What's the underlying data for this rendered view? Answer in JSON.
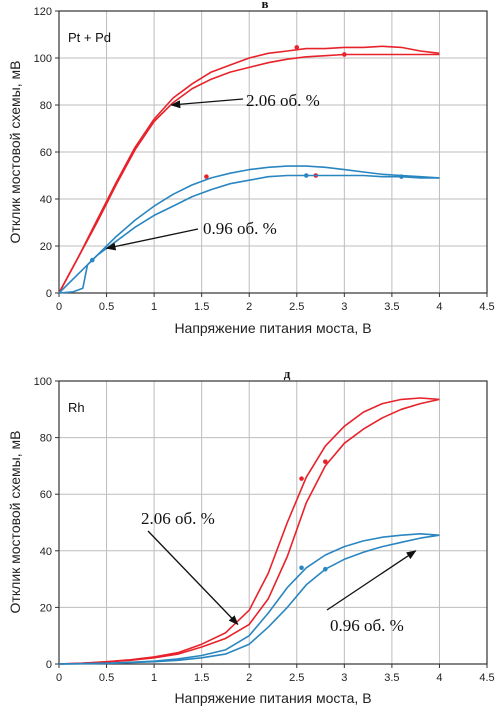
{
  "chart_data": [
    {
      "type": "line",
      "panel_letter": "в",
      "panel_label": "Pt + Pd",
      "xlabel": "Напряжение питания моста, В",
      "ylabel": "Отклик мостовой схемы, мВ",
      "xlim": [
        0,
        4.5
      ],
      "ylim": [
        0,
        120
      ],
      "xticks": [
        "0",
        "0.5",
        "1",
        "1.5",
        "2",
        "2.5",
        "3",
        "3.5",
        "4",
        "4.5"
      ],
      "yticks": [
        "0",
        "20",
        "40",
        "60",
        "80",
        "100",
        "120"
      ],
      "grid": true,
      "colors": {
        "red": "#e8222a",
        "blue": "#2a86c0"
      },
      "annotations": [
        {
          "text": "2.06 об. %",
          "target": [
            1.18,
            80
          ]
        },
        {
          "text": "0.96 об. %",
          "target": [
            0.5,
            19
          ]
        }
      ],
      "series": [
        {
          "color": "red",
          "x": [
            0,
            0.2,
            0.4,
            0.6,
            0.8,
            1.0,
            1.2,
            1.4,
            1.6,
            1.8,
            2.0,
            2.2,
            2.4,
            2.6,
            2.8,
            3.0,
            3.2,
            3.4,
            3.6,
            3.8,
            4.0
          ],
          "y": [
            0,
            15,
            31,
            47,
            62,
            74,
            83,
            89,
            94,
            97,
            100,
            102,
            103,
            104,
            104,
            104.5,
            104.5,
            105,
            104.5,
            103,
            102
          ]
        },
        {
          "color": "red",
          "x": [
            0,
            0.2,
            0.4,
            0.6,
            0.8,
            1.0,
            1.2,
            1.4,
            1.6,
            1.8,
            2.0,
            2.2,
            2.4,
            2.6,
            2.8,
            3.0,
            3.2,
            3.4,
            3.6,
            3.8,
            4.0
          ],
          "y": [
            0,
            15,
            30,
            46,
            61,
            73,
            81,
            87,
            91,
            94,
            96,
            98,
            99.5,
            100.5,
            101,
            101.5,
            101.5,
            101.5,
            101.5,
            101.5,
            101.5
          ]
        },
        {
          "color": "blue",
          "x": [
            0,
            0.2,
            0.4,
            0.6,
            0.8,
            1.0,
            1.2,
            1.4,
            1.6,
            1.8,
            2.0,
            2.2,
            2.4,
            2.6,
            2.8,
            3.0,
            3.2,
            3.4,
            3.6,
            3.8,
            4.0
          ],
          "y": [
            0,
            8,
            16,
            24,
            31,
            37,
            42,
            46,
            49,
            51,
            52.5,
            53.5,
            54,
            54,
            53.5,
            52.5,
            51.5,
            50.5,
            50,
            49.5,
            49
          ]
        },
        {
          "color": "blue",
          "x": [
            0,
            0.15,
            0.25,
            0.3,
            0.4,
            0.6,
            0.8,
            1.0,
            1.2,
            1.4,
            1.6,
            1.8,
            2.0,
            2.2,
            2.4,
            2.6,
            2.8,
            3.0,
            3.2,
            3.4,
            3.6,
            3.8,
            4.0
          ],
          "y": [
            0,
            0.5,
            2,
            12,
            16,
            22,
            28,
            33,
            37,
            41,
            44,
            46.5,
            48,
            49.5,
            50,
            50,
            50,
            50,
            50,
            49.5,
            49.5,
            49,
            49
          ]
        }
      ]
    },
    {
      "type": "line",
      "panel_letter": "д",
      "panel_label": "Rh",
      "xlabel": "Напряжение питания моста, В",
      "ylabel": "Отклик мостовой схемы, мВ",
      "xlim": [
        0,
        4.5
      ],
      "ylim": [
        0,
        100
      ],
      "xticks": [
        "0",
        "0.5",
        "1",
        "1.5",
        "2",
        "2.5",
        "3",
        "3.5",
        "4",
        "4.5"
      ],
      "yticks": [
        "0",
        "20",
        "40",
        "60",
        "80",
        "100"
      ],
      "grid": true,
      "colors": {
        "red": "#e8222a",
        "blue": "#2a86c0"
      },
      "annotations": [
        {
          "text": "2.06 об. %",
          "target": [
            1.88,
            14
          ]
        },
        {
          "text": "0.96 об. %",
          "target": [
            3.75,
            40
          ]
        }
      ],
      "series": [
        {
          "color": "red",
          "x": [
            0,
            0.25,
            0.5,
            0.75,
            1.0,
            1.25,
            1.5,
            1.75,
            2.0,
            2.2,
            2.4,
            2.6,
            2.8,
            3.0,
            3.2,
            3.4,
            3.6,
            3.8,
            4.0
          ],
          "y": [
            0,
            0.3,
            0.8,
            1.5,
            2.5,
            4,
            7,
            11,
            19,
            32,
            50,
            66,
            77,
            84,
            89,
            92,
            93.5,
            94,
            93.5
          ]
        },
        {
          "color": "red",
          "x": [
            0,
            0.25,
            0.5,
            0.75,
            1.0,
            1.25,
            1.5,
            1.75,
            2.0,
            2.2,
            2.4,
            2.6,
            2.8,
            3.0,
            3.2,
            3.4,
            3.6,
            3.8,
            4.0
          ],
          "y": [
            0,
            0.3,
            0.7,
            1.3,
            2.2,
            3.5,
            6,
            9,
            14,
            23,
            38,
            57,
            70,
            78,
            83,
            87,
            90,
            92,
            93.5
          ]
        },
        {
          "color": "blue",
          "x": [
            0,
            0.25,
            0.5,
            0.75,
            1.0,
            1.25,
            1.5,
            1.75,
            2.0,
            2.2,
            2.4,
            2.6,
            2.8,
            3.0,
            3.2,
            3.4,
            3.6,
            3.8,
            4.0
          ],
          "y": [
            0,
            0.1,
            0.3,
            0.6,
            1,
            1.8,
            3,
            5,
            10,
            18,
            27,
            34,
            38.5,
            41.5,
            43.5,
            44.8,
            45.5,
            46,
            45.5
          ]
        },
        {
          "color": "blue",
          "x": [
            0,
            0.25,
            0.5,
            0.75,
            1.0,
            1.25,
            1.5,
            1.75,
            2.0,
            2.2,
            2.4,
            2.6,
            2.8,
            3.0,
            3.2,
            3.4,
            3.6,
            3.8,
            4.0
          ],
          "y": [
            0,
            0.1,
            0.2,
            0.5,
            0.8,
            1.3,
            2.2,
            3.5,
            7,
            13,
            20,
            28,
            33.5,
            37,
            39.5,
            41.5,
            43,
            44.5,
            45.5
          ]
        }
      ]
    }
  ]
}
